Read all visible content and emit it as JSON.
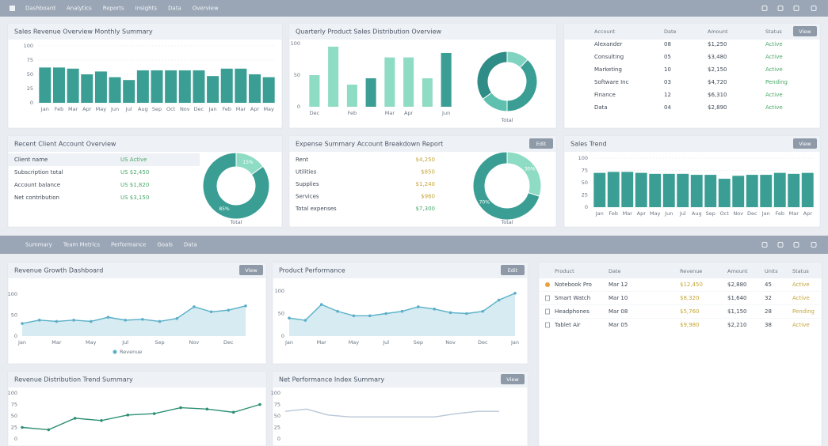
{
  "topbar": {
    "items": [
      "Dashboard",
      "Analytics",
      "Reports",
      "Insights",
      "Data",
      "Overview"
    ]
  },
  "subbar": {
    "items": [
      "Summary",
      "Team Metrics",
      "Performance",
      "Goals",
      "Data"
    ]
  },
  "panels": {
    "A": {
      "title": "Sales Revenue Overview Monthly Summary",
      "chart_data": {
        "type": "bar",
        "color": "#3a9e94",
        "categories": [
          "Jan",
          "Feb",
          "Mar",
          "Apr",
          "May",
          "Jun",
          "Jul",
          "Aug",
          "Sep",
          "Oct",
          "Nov",
          "Dec",
          "Jan",
          "Feb",
          "Mar",
          "Apr",
          "May"
        ],
        "values": [
          62,
          62,
          60,
          50,
          55,
          45,
          40,
          57,
          57,
          57,
          57,
          57,
          47,
          60,
          60,
          50,
          45
        ],
        "ylim": [
          0,
          100
        ],
        "yticks": [
          0,
          25,
          50,
          75,
          100
        ],
        "grid": true
      }
    },
    "B": {
      "title": "Quarterly Product Sales Distribution Overview",
      "chart_data": {
        "type": "bar",
        "categories": [
          "Dec",
          null,
          "Feb",
          null,
          "Mar",
          "Apr",
          null,
          "Jun"
        ],
        "values": [
          50,
          95,
          35,
          45,
          78,
          78,
          45,
          85
        ],
        "colors": [
          "#8fdcc4",
          "#8fdcc4",
          "#8fdcc4",
          "#3a9e94",
          "#8fdcc4",
          "#8fdcc4",
          "#8fdcc4",
          "#3a9e94"
        ],
        "ylim": [
          0,
          100
        ],
        "yticks": [
          0,
          50,
          100
        ],
        "grid": false
      },
      "donut": {
        "type": "pie",
        "values": [
          12,
          38,
          15,
          35
        ],
        "colors": [
          "#7fd3c0",
          "#3a9e94",
          "#5fc0b0",
          "#2f8c86"
        ],
        "caption": "Total"
      }
    },
    "C": {
      "button": "View",
      "headers": [
        "Account",
        "Date",
        "Amount",
        "Status"
      ],
      "rows": [
        [
          "Alexander",
          "08",
          "$1,250",
          "Active"
        ],
        [
          "Consulting",
          "05",
          "$3,480",
          "Active"
        ],
        [
          "Marketing",
          "10",
          "$2,150",
          "Active"
        ],
        [
          "Software Inc",
          "03",
          "$4,720",
          "Pending"
        ],
        [
          "Finance",
          "12",
          "$6,310",
          "Active"
        ],
        [
          "Data",
          "04",
          "$2,890",
          "Active"
        ]
      ]
    },
    "D": {
      "title": "Recent Client Account Overview",
      "rows": [
        [
          "Client name",
          "US Active"
        ],
        [
          "Subscription total",
          "US $2,450"
        ],
        [
          "Account balance",
          "US $1,820"
        ],
        [
          "Net contribution",
          "US $3,150"
        ]
      ],
      "donut": {
        "type": "pie",
        "values": [
          15,
          85
        ],
        "value_labels": [
          "15%",
          "85%"
        ],
        "colors": [
          "#8fdcc4",
          "#3a9e94"
        ],
        "caption": "Total"
      }
    },
    "E": {
      "title": "Expense Summary Account Breakdown Report",
      "button": "Edit",
      "rows": [
        [
          "Rent",
          "$4,250"
        ],
        [
          "Utilities",
          "$850"
        ],
        [
          "Supplies",
          "$1,240"
        ],
        [
          "Services",
          "$960"
        ],
        [
          "Total expenses",
          "$7,300"
        ]
      ],
      "donut": {
        "type": "pie",
        "values": [
          30,
          70
        ],
        "value_labels": [
          "30%",
          "70%"
        ],
        "colors": [
          "#8fdcc4",
          "#3a9e94"
        ],
        "caption": "Total"
      }
    },
    "F": {
      "title": "Sales Trend",
      "button": "View",
      "chart_data": {
        "type": "bar",
        "color": "#3a9e94",
        "categories": [
          "Jan",
          "Feb",
          "Mar",
          "Apr",
          "May",
          "Jun",
          "Jul",
          "Aug",
          "Sep",
          "Oct",
          "Nov",
          "Dec",
          "Jan",
          "Feb",
          "Mar",
          "Apr"
        ],
        "values": [
          70,
          72,
          72,
          70,
          68,
          68,
          68,
          66,
          66,
          58,
          64,
          66,
          66,
          70,
          68,
          70
        ],
        "ylim": [
          0,
          100
        ],
        "yticks": [
          0,
          25,
          50,
          75,
          100
        ],
        "grid": true
      }
    },
    "G": {
      "title": "Revenue Growth Dashboard",
      "button": "View",
      "chart_data": {
        "type": "line",
        "area": true,
        "markers": true,
        "legend": "bottom",
        "categories": [
          "Jan",
          null,
          "Mar",
          null,
          "May",
          null,
          "Jul",
          null,
          "Sep",
          null,
          "Nov",
          null,
          "Dec",
          null
        ],
        "series": [
          {
            "name": "Revenue",
            "color": "#5ab0c8",
            "values": [
              30,
              38,
              35,
              38,
              35,
              45,
              38,
              40,
              35,
              42,
              70,
              58,
              62,
              72
            ]
          }
        ],
        "ylim": [
          0,
          100
        ],
        "yticks": [
          0,
          50,
          100
        ],
        "grid": false
      }
    },
    "H": {
      "title": "Product Performance",
      "button": "Edit",
      "chart_data": {
        "type": "line",
        "area": true,
        "markers": true,
        "categories": [
          "Jan",
          null,
          "Mar",
          null,
          "May",
          null,
          "Jul",
          null,
          "Sep",
          null,
          "Nov",
          null,
          "Dec",
          null,
          "Jan"
        ],
        "series": [
          {
            "color": "#5ab0c8",
            "values": [
              40,
              35,
              70,
              55,
              45,
              45,
              50,
              55,
              65,
              60,
              52,
              50,
              55,
              80,
              95
            ]
          }
        ],
        "ylim": [
          0,
          100
        ],
        "yticks": [
          0,
          50,
          100
        ],
        "grid": false
      }
    },
    "I": {
      "headers": [
        "Product",
        "Date",
        "Revenue",
        "Amount",
        "Units",
        "Status"
      ],
      "rows": [
        [
          "Notebook Pro",
          "Mar 12",
          "$12,450",
          "$2,880",
          "45",
          "Active"
        ],
        [
          "Smart Watch",
          "Mar 10",
          "$8,320",
          "$1,640",
          "32",
          "Active"
        ],
        [
          "Headphones",
          "Mar 08",
          "$5,760",
          "$1,150",
          "28",
          "Pending"
        ],
        [
          "Tablet Air",
          "Mar 05",
          "$9,980",
          "$2,210",
          "38",
          "Active"
        ]
      ]
    },
    "J": {
      "title": "Revenue Distribution Trend Summary",
      "chart_data": {
        "type": "line",
        "markers": true,
        "series": [
          {
            "color": "#2e8f73",
            "values": [
              25,
              20,
              45,
              40,
              52,
              55,
              68,
              65,
              58,
              75
            ]
          }
        ],
        "ylim": [
          0,
          100
        ],
        "yticks": [
          0,
          25,
          50,
          75,
          100
        ],
        "grid": false
      }
    },
    "K": {
      "title": "Net Performance Index Summary",
      "button": "View",
      "chart_data": {
        "type": "line",
        "markers": false,
        "series": [
          {
            "color": "#b8c6d6",
            "values": [
              60,
              65,
              52,
              48,
              48,
              48,
              48,
              48,
              55,
              60,
              60
            ]
          }
        ],
        "ylim": [
          0,
          100
        ],
        "yticks": [
          0,
          25,
          50,
          75,
          100
        ],
        "grid": false
      }
    }
  }
}
